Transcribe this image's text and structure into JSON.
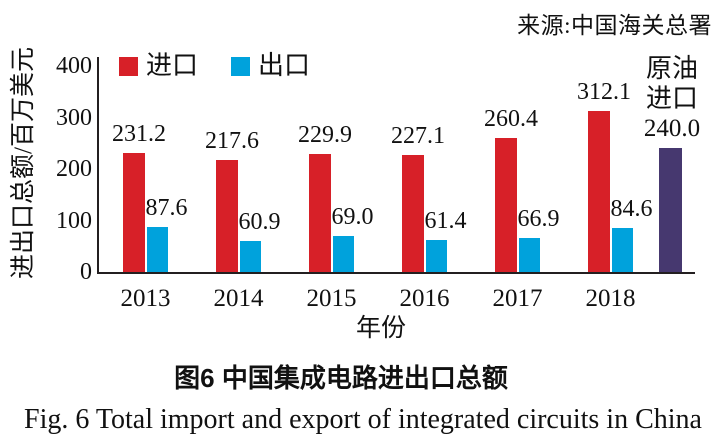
{
  "source_note": "来源:中国海关总署",
  "chart_data": {
    "type": "bar",
    "title": "图6 中国集成电路进出口总额",
    "xlabel": "年份",
    "ylabel": "进出口总额/百万美元",
    "ylim": [
      0,
      400
    ],
    "yticks": [
      0,
      100,
      200,
      300,
      400
    ],
    "grid": false,
    "legend_position": "top-left-inside",
    "categories": [
      "2013",
      "2014",
      "2015",
      "2016",
      "2017",
      "2018"
    ],
    "series": [
      {
        "name": "进口",
        "color": "#d72028",
        "values": [
          231.2,
          217.6,
          229.9,
          227.1,
          260.4,
          312.1
        ]
      },
      {
        "name": "出口",
        "color": "#00a2dc",
        "values": [
          87.6,
          60.9,
          69.0,
          61.4,
          66.9,
          84.6
        ]
      }
    ],
    "extra_bar": {
      "label_lines": [
        "原油",
        "进口"
      ],
      "value": 240.0,
      "color": "#46386f"
    }
  },
  "axis_color": "#231f20",
  "caption_zh": "图6 中国集成电路进出口总额",
  "caption_en": "Fig. 6 Total import and export of integrated circuits in China"
}
